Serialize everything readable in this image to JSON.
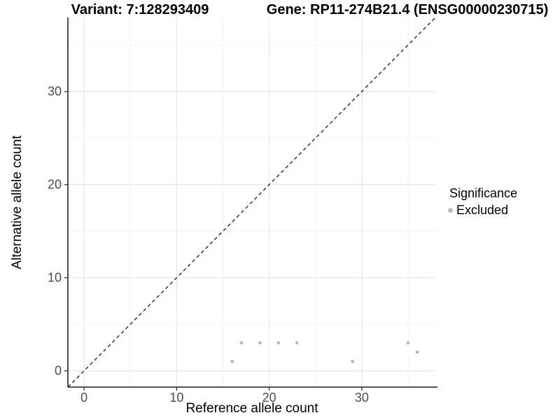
{
  "chart_data": {
    "type": "scatter",
    "titles": {
      "left": "Variant: 7:128293409",
      "right": "Gene: RP11-274B21.4 (ENSG00000230715)"
    },
    "xlabel": "Reference allele count",
    "ylabel": "Alternative allele count",
    "x_ticks": [
      0,
      10,
      20,
      30
    ],
    "y_ticks": [
      0,
      10,
      20,
      30
    ],
    "x_minor_ticks": [
      5,
      15,
      25,
      35
    ],
    "y_minor_ticks": [
      5,
      15,
      25,
      35
    ],
    "xlim": [
      -1.75,
      37.95
    ],
    "ylim": [
      -1.75,
      37.95
    ],
    "grid": true,
    "legend_position": "right",
    "series": [
      {
        "name": "Excluded",
        "color": "#b9b9b9",
        "points": [
          {
            "x": 16,
            "y": 1
          },
          {
            "x": 17,
            "y": 3
          },
          {
            "x": 19,
            "y": 3
          },
          {
            "x": 21,
            "y": 3
          },
          {
            "x": 23,
            "y": 3
          },
          {
            "x": 29,
            "y": 1
          },
          {
            "x": 35,
            "y": 3
          },
          {
            "x": 36,
            "y": 2
          }
        ]
      }
    ],
    "reference_line": {
      "slope": 1,
      "intercept": 0,
      "style": "dashed",
      "color": "#1a1a1a"
    },
    "legend": {
      "title": "Significance",
      "items": [
        {
          "label": "Excluded",
          "color": "#b9b9b9"
        }
      ]
    },
    "colors": {
      "point": "#b9b9b9",
      "axis_line": "#3c3c3c",
      "tick_label": "#4d4d4d",
      "grid_major": "#e4e4e4",
      "grid_minor": "#f1f1f1"
    }
  }
}
